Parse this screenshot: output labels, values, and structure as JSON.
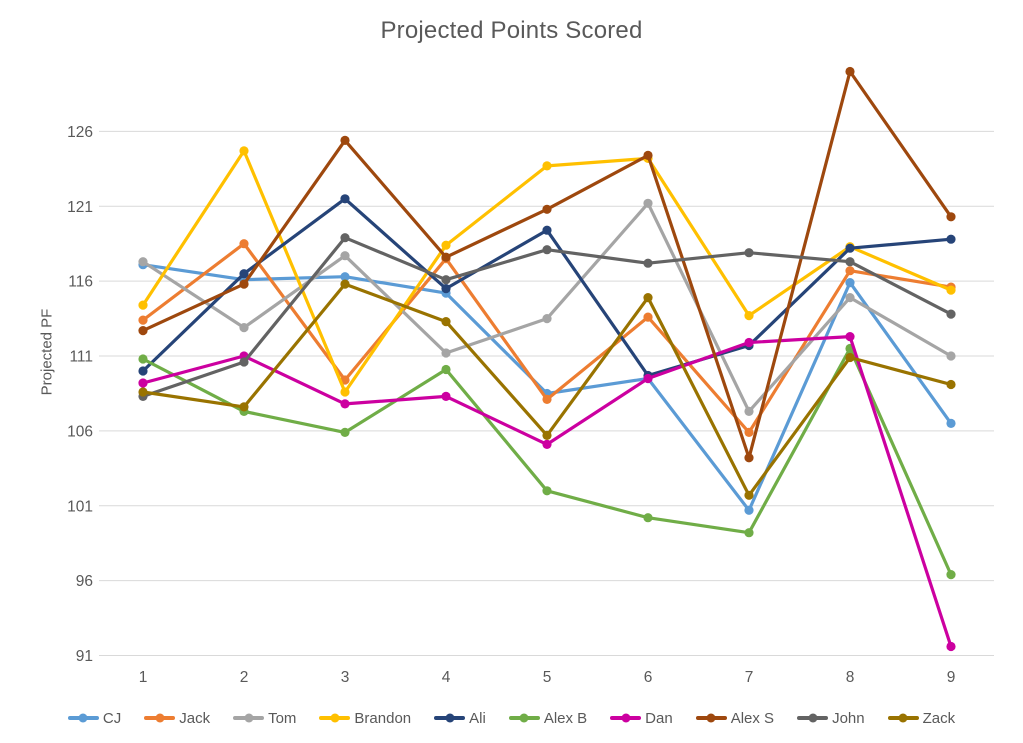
{
  "chart_data": {
    "type": "line",
    "title": "Projected Points Scored",
    "xlabel": "",
    "ylabel": "Projected PF",
    "x": [
      1,
      2,
      3,
      4,
      5,
      6,
      7,
      8,
      9
    ],
    "x_tick_labels": [
      "1",
      "2",
      "3",
      "4",
      "5",
      "6",
      "7",
      "8",
      "9"
    ],
    "y_ticks": [
      91,
      96,
      101,
      106,
      111,
      116,
      121,
      126
    ],
    "ylim": [
      91,
      131
    ],
    "grid": "horizontal-only",
    "grid_color": "#D9D9D9",
    "text_color": "#595959",
    "legend_position": "bottom",
    "series": [
      {
        "name": "CJ",
        "color": "#5B9BD5",
        "values": [
          117.1,
          116.1,
          116.3,
          115.2,
          108.5,
          109.5,
          100.7,
          115.9,
          106.5
        ]
      },
      {
        "name": "Jack",
        "color": "#ED7D31",
        "values": [
          113.4,
          118.5,
          109.4,
          117.5,
          108.1,
          113.6,
          105.9,
          116.7,
          115.6
        ]
      },
      {
        "name": "Tom",
        "color": "#A5A5A5",
        "values": [
          117.3,
          112.9,
          117.7,
          111.2,
          113.5,
          121.2,
          107.3,
          114.9,
          111.0
        ]
      },
      {
        "name": "Brandon",
        "color": "#FFC000",
        "values": [
          114.4,
          124.7,
          108.6,
          118.4,
          123.7,
          124.2,
          113.7,
          118.3,
          115.4
        ]
      },
      {
        "name": "Ali",
        "color": "#264478",
        "values": [
          110.0,
          116.5,
          121.5,
          115.5,
          119.4,
          109.7,
          111.7,
          118.2,
          118.8
        ]
      },
      {
        "name": "Alex B",
        "color": "#70AD47",
        "values": [
          110.8,
          107.3,
          105.9,
          110.1,
          102.0,
          100.2,
          99.2,
          111.5,
          96.4
        ]
      },
      {
        "name": "Dan",
        "color": "#CC00A0",
        "values": [
          109.2,
          111.0,
          107.8,
          108.3,
          105.1,
          109.5,
          111.9,
          112.3,
          91.6
        ]
      },
      {
        "name": "Alex S",
        "color": "#9E480E",
        "values": [
          112.7,
          115.8,
          125.4,
          117.6,
          120.8,
          124.4,
          104.2,
          130.0,
          120.3
        ]
      },
      {
        "name": "John",
        "color": "#636363",
        "values": [
          108.3,
          110.6,
          118.9,
          116.1,
          118.1,
          117.2,
          117.9,
          117.3,
          113.8
        ]
      },
      {
        "name": "Zack",
        "color": "#997300",
        "values": [
          108.6,
          107.6,
          115.8,
          113.3,
          105.7,
          114.9,
          101.7,
          110.9,
          109.1
        ]
      }
    ]
  }
}
